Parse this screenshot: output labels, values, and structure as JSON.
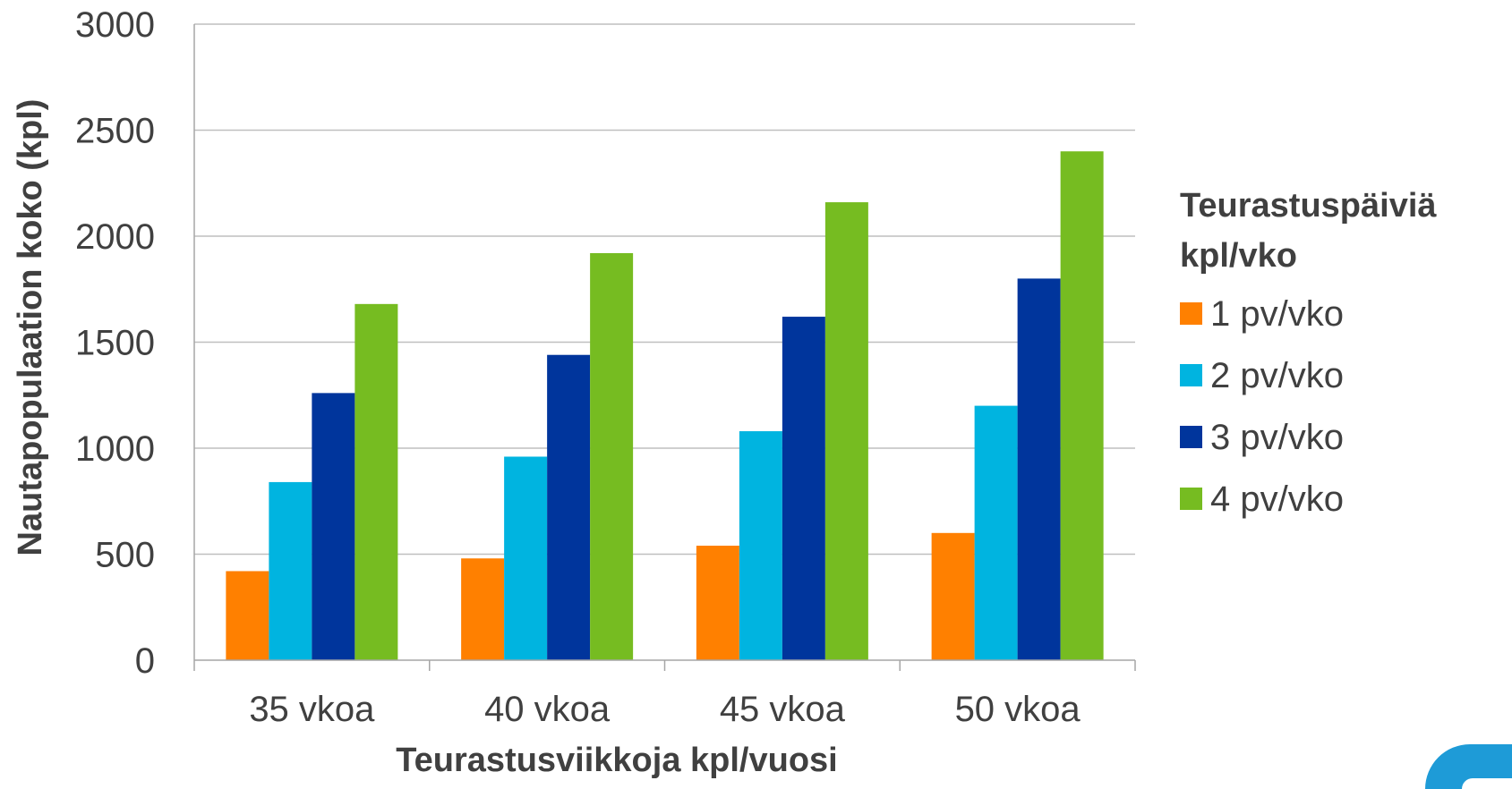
{
  "chart_data": {
    "type": "bar",
    "categories": [
      "35 vkoa",
      "40 vkoa",
      "45 vkoa",
      "50 vkoa"
    ],
    "series": [
      {
        "name": "1 pv/vko",
        "color": "#FF8000",
        "values": [
          420,
          480,
          540,
          600
        ]
      },
      {
        "name": "2 pv/vko",
        "color": "#00B4E0",
        "values": [
          840,
          960,
          1080,
          1200
        ]
      },
      {
        "name": "3 pv/vko",
        "color": "#00359C",
        "values": [
          1260,
          1440,
          1620,
          1800
        ]
      },
      {
        "name": "4 pv/vko",
        "color": "#76BC21",
        "values": [
          1680,
          1920,
          2160,
          2400
        ]
      }
    ],
    "yticks": [
      "0",
      "500",
      "1000",
      "1500",
      "2000",
      "2500",
      "3000"
    ],
    "ylim": [
      0,
      3000
    ],
    "xlabel": "Teurastusviikkoja kpl/vuosi",
    "ylabel": "Nautapopulaation koko (kpl)",
    "legend_title_line1": "Teurastuspäiviä",
    "legend_title_line2": "kpl/vko",
    "legend_position": "right",
    "grid": true
  },
  "logo": {
    "name": "corner-logo",
    "color": "#1E9BD7"
  }
}
